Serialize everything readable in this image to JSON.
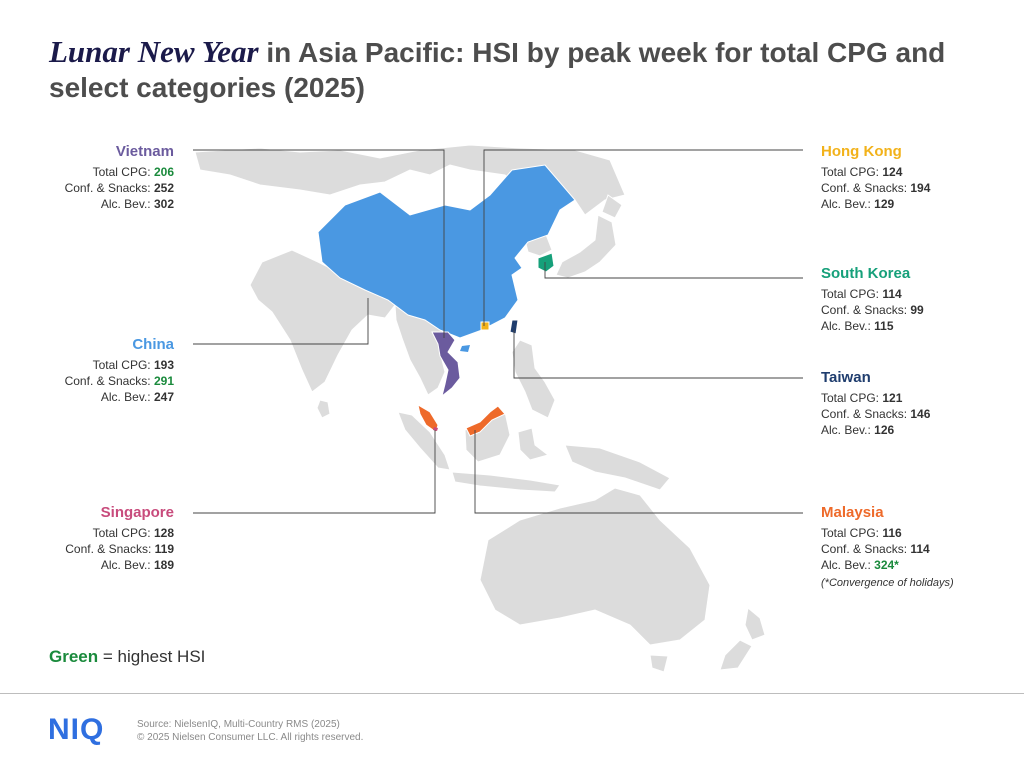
{
  "title": {
    "italic": "Lunar New Year",
    "rest": " in Asia Pacific: HSI by peak week for total CPG and select categories (2025)"
  },
  "colors": {
    "china": "#4a98e2",
    "vietnam": "#6b5b9e",
    "hong_kong": "#f2b21a",
    "south_korea": "#16a07a",
    "taiwan": "#1f3d6e",
    "malaysia": "#ee6a2a",
    "singapore": "#c84b7c",
    "land": "#dcdcdc",
    "highlight": "#1a8a3c"
  },
  "countries": {
    "vietnam": {
      "name": "Vietnam",
      "rows": [
        {
          "label": "Total CPG: ",
          "value": "206",
          "highest": true
        },
        {
          "label": "Conf. & Snacks: ",
          "value": "252",
          "highest": false
        },
        {
          "label": "Alc. Bev.: ",
          "value": "302",
          "highest": false
        }
      ]
    },
    "china": {
      "name": "China",
      "rows": [
        {
          "label": "Total CPG: ",
          "value": "193",
          "highest": false
        },
        {
          "label": "Conf. & Snacks: ",
          "value": "291",
          "highest": true
        },
        {
          "label": "Alc. Bev.: ",
          "value": "247",
          "highest": false
        }
      ]
    },
    "singapore": {
      "name": "Singapore",
      "rows": [
        {
          "label": "Total CPG: ",
          "value": "128",
          "highest": false
        },
        {
          "label": "Conf. & Snacks: ",
          "value": "119",
          "highest": false
        },
        {
          "label": "Alc. Bev.: ",
          "value": "189",
          "highest": false
        }
      ]
    },
    "hong_kong": {
      "name": "Hong Kong",
      "rows": [
        {
          "label": "Total CPG: ",
          "value": "124",
          "highest": false
        },
        {
          "label": "Conf. & Snacks: ",
          "value": "194",
          "highest": false
        },
        {
          "label": "Alc. Bev.: ",
          "value": "129",
          "highest": false
        }
      ]
    },
    "south_korea": {
      "name": "South Korea",
      "rows": [
        {
          "label": "Total CPG: ",
          "value": "114",
          "highest": false
        },
        {
          "label": "Conf. & Snacks: ",
          "value": "99",
          "highest": false
        },
        {
          "label": "Alc. Bev.: ",
          "value": "115",
          "highest": false
        }
      ]
    },
    "taiwan": {
      "name": "Taiwan",
      "rows": [
        {
          "label": "Total CPG: ",
          "value": "121",
          "highest": false
        },
        {
          "label": "Conf. & Snacks: ",
          "value": "146",
          "highest": false
        },
        {
          "label": "Alc. Bev.: ",
          "value": "126",
          "highest": false
        }
      ]
    },
    "malaysia": {
      "name": "Malaysia",
      "rows": [
        {
          "label": "Total CPG: ",
          "value": "116",
          "highest": false
        },
        {
          "label": "Conf. & Snacks: ",
          "value": "114",
          "highest": false
        },
        {
          "label": "Alc. Bev.: ",
          "value": "324*",
          "highest": true
        }
      ],
      "note": "(*Convergence of holidays)"
    }
  },
  "legend": {
    "green_word": "Green",
    "rest": " = highest  HSI"
  },
  "footer": {
    "logo": "NIQ",
    "source_line1": "Source: NielsenIQ, Multi-Country RMS (2025)",
    "source_line2": "© 2025 Nielsen Consumer LLC. All rights reserved."
  }
}
